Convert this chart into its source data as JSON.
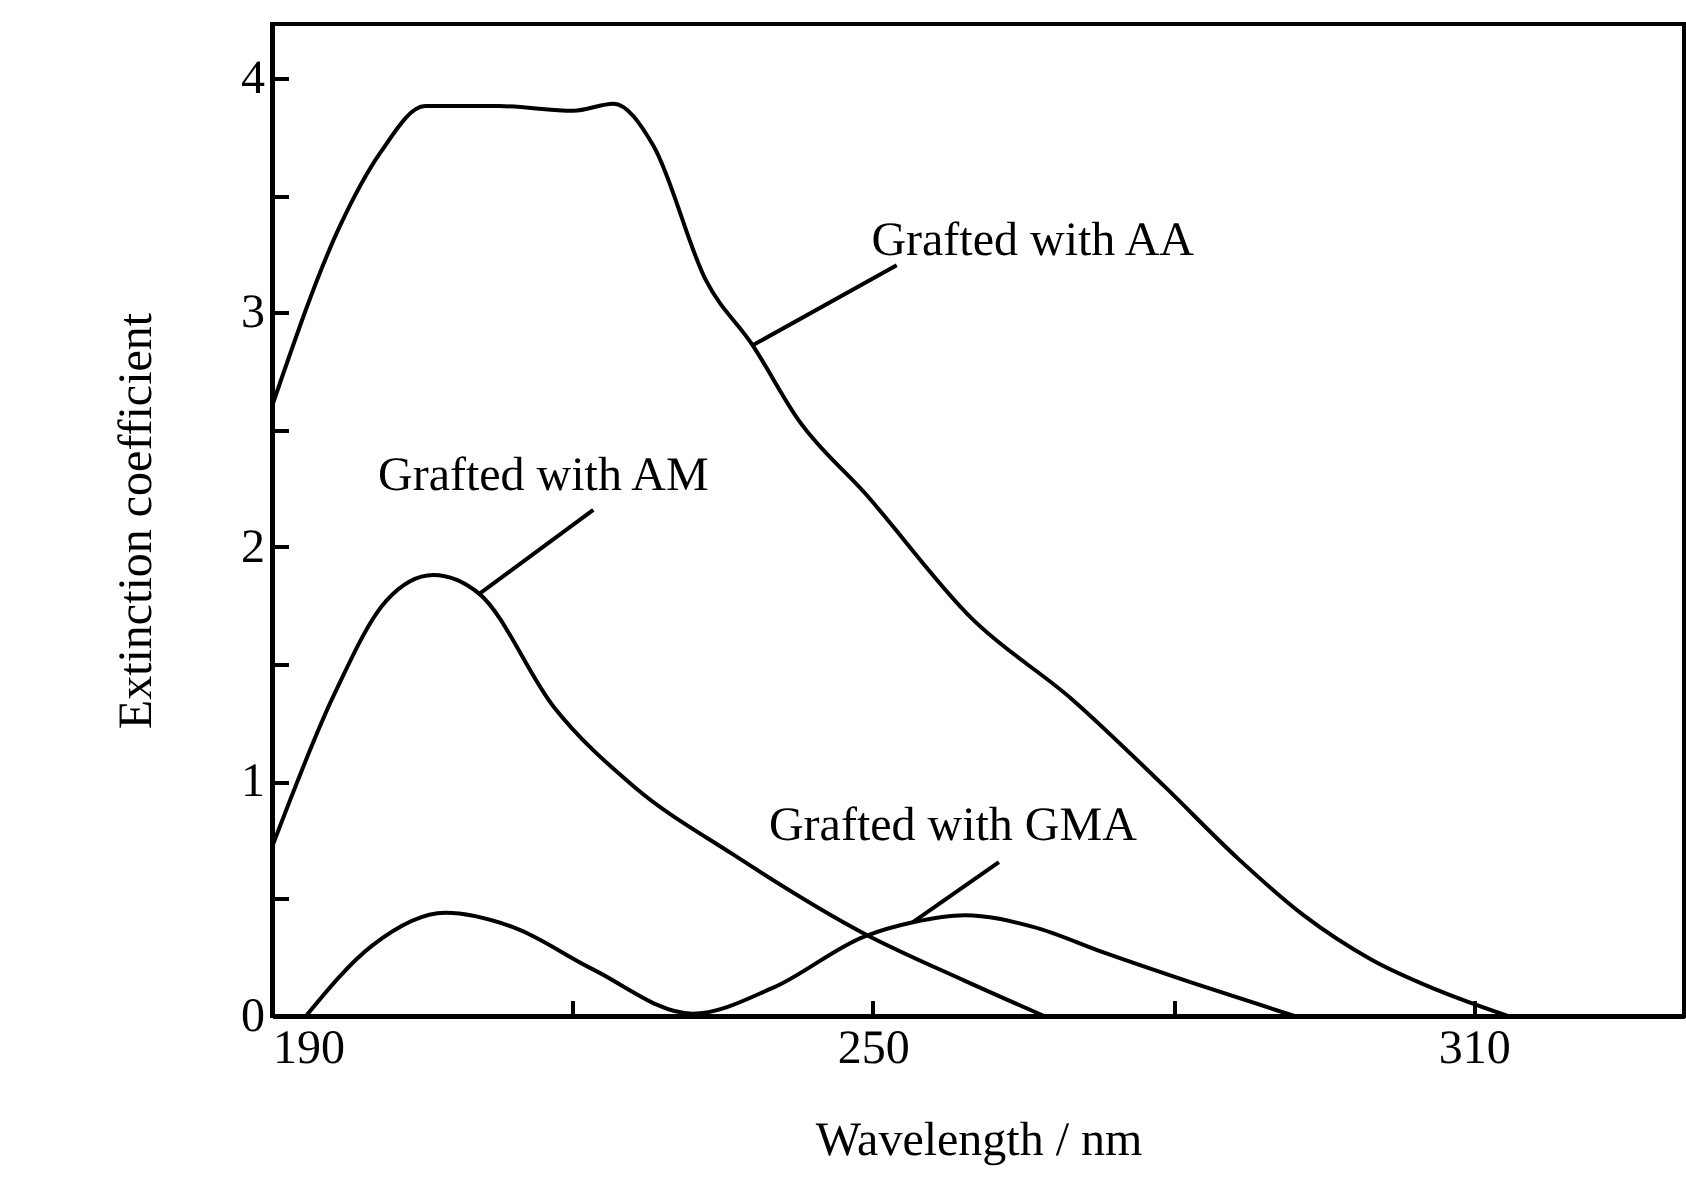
{
  "chart_data": {
    "type": "line",
    "xlabel": "Wavelength / nm",
    "ylabel": "Extinction coefficient",
    "xlim": [
      190,
      331
    ],
    "ylim": [
      0,
      4.23
    ],
    "xticks": [
      190,
      {
        "value": 220,
        "label": null
      },
      250,
      {
        "value": 280,
        "label": null
      },
      310
    ],
    "yticks": [
      0,
      {
        "value": 0.5,
        "label": null
      },
      1,
      {
        "value": 1.5,
        "label": null
      },
      2,
      {
        "value": 2.5,
        "label": null
      },
      3,
      {
        "value": 3.5,
        "label": null
      },
      4
    ],
    "grid": false,
    "marker": "none",
    "line_style": "solid",
    "series": [
      {
        "name": "Grafted with AA",
        "color": "#000000",
        "x": [
          190,
          196.8,
          200.8,
          205.3,
          212.7,
          220.1,
          224.1,
          228.1,
          233.3,
          238.0,
          242.6,
          249.2,
          260.0,
          269.9,
          279.1,
          286.5,
          293.0,
          299.8,
          306.4,
          313.4
        ],
        "values": [
          2.6,
          3.37,
          3.68,
          3.88,
          3.88,
          3.86,
          3.89,
          3.71,
          3.14,
          2.86,
          2.54,
          2.23,
          1.69,
          1.35,
          0.98,
          0.67,
          0.43,
          0.24,
          0.11,
          0
        ]
      },
      {
        "name": "Grafted with AM",
        "color": "#000000",
        "x": [
          190,
          196.2,
          201.4,
          206.1,
          210.7,
          218.1,
          226.1,
          236.0,
          249.2,
          259.2,
          267.1
        ],
        "values": [
          0.72,
          1.37,
          1.77,
          1.88,
          1.8,
          1.32,
          0.98,
          0.69,
          0.35,
          0.15,
          0
        ]
      },
      {
        "name": "Grafted with GMA",
        "color": "#000000",
        "x": [
          193.4,
          200,
          207.3,
          214,
          222,
          232,
          240,
          249.2,
          254,
          259.2,
          266,
          273.1,
          282,
          292.1
        ],
        "values": [
          0,
          0.3,
          0.44,
          0.38,
          0.2,
          0.01,
          0.12,
          0.34,
          0.4,
          0.43,
          0.38,
          0.27,
          0.14,
          0
        ]
      }
    ]
  }
}
